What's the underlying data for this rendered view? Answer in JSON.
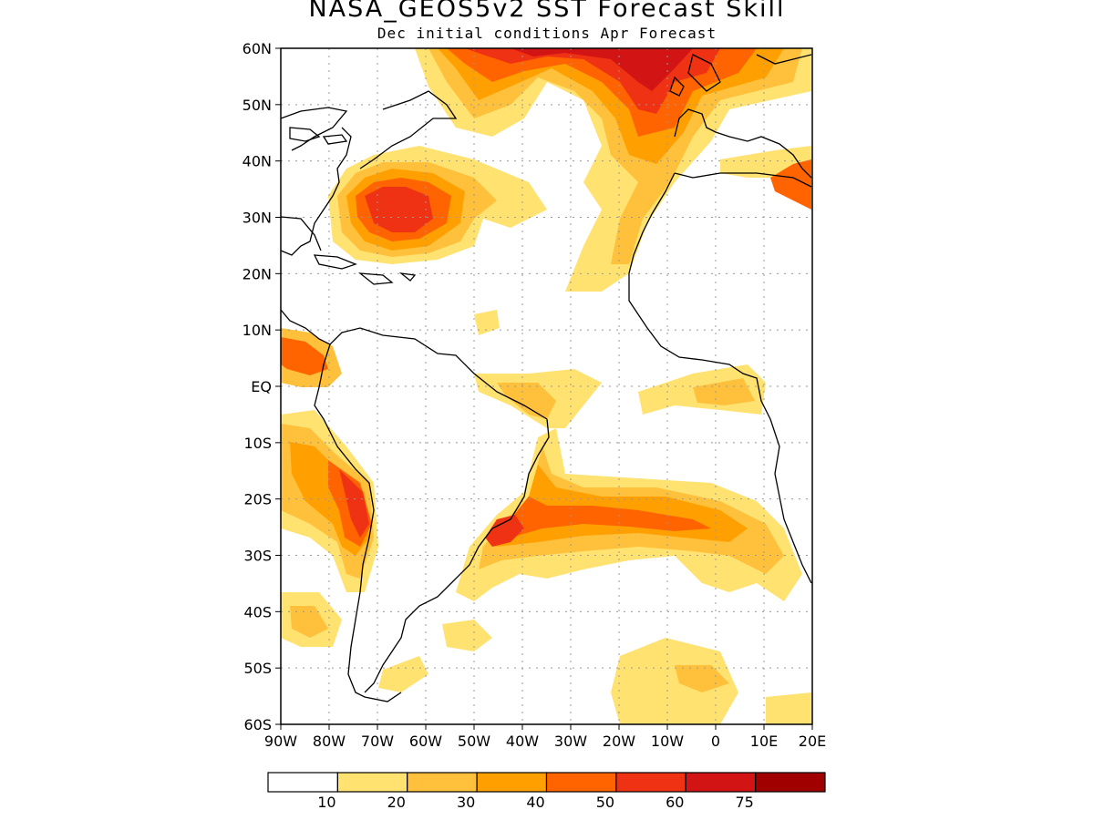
{
  "title": "NASA_GEOS5v2 SST Forecast Skill",
  "subtitle": "Dec initial conditions  Apr Forecast",
  "map": {
    "lon_range": [
      -90,
      20
    ],
    "lat_range": [
      -60,
      60
    ],
    "lon_ticks": [
      {
        "lon": -90,
        "label": "90W"
      },
      {
        "lon": -80,
        "label": "80W"
      },
      {
        "lon": -70,
        "label": "70W"
      },
      {
        "lon": -60,
        "label": "60W"
      },
      {
        "lon": -50,
        "label": "50W"
      },
      {
        "lon": -40,
        "label": "40W"
      },
      {
        "lon": -30,
        "label": "30W"
      },
      {
        "lon": -20,
        "label": "20W"
      },
      {
        "lon": -10,
        "label": "10W"
      },
      {
        "lon": 0,
        "label": "0"
      },
      {
        "lon": 10,
        "label": "10E"
      },
      {
        "lon": 20,
        "label": "20E"
      }
    ],
    "lat_ticks": [
      {
        "lat": 60,
        "label": "60N"
      },
      {
        "lat": 50,
        "label": "50N"
      },
      {
        "lat": 40,
        "label": "40N"
      },
      {
        "lat": 30,
        "label": "30N"
      },
      {
        "lat": 20,
        "label": "20N"
      },
      {
        "lat": 10,
        "label": "10N"
      },
      {
        "lat": 0,
        "label": "EQ"
      },
      {
        "lat": -10,
        "label": "10S"
      },
      {
        "lat": -20,
        "label": "20S"
      },
      {
        "lat": -30,
        "label": "30S"
      },
      {
        "lat": -40,
        "label": "40S"
      },
      {
        "lat": -50,
        "label": "50S"
      },
      {
        "lat": -60,
        "label": "60S"
      }
    ],
    "grid": true
  },
  "colorbar": {
    "colors": [
      "#ffffff",
      "#ffe270",
      "#ffc03c",
      "#ffa000",
      "#ff6400",
      "#f03214",
      "#d21414",
      "#a00000"
    ],
    "labels": [
      "10",
      "20",
      "30",
      "40",
      "50",
      "60",
      "75"
    ]
  }
}
